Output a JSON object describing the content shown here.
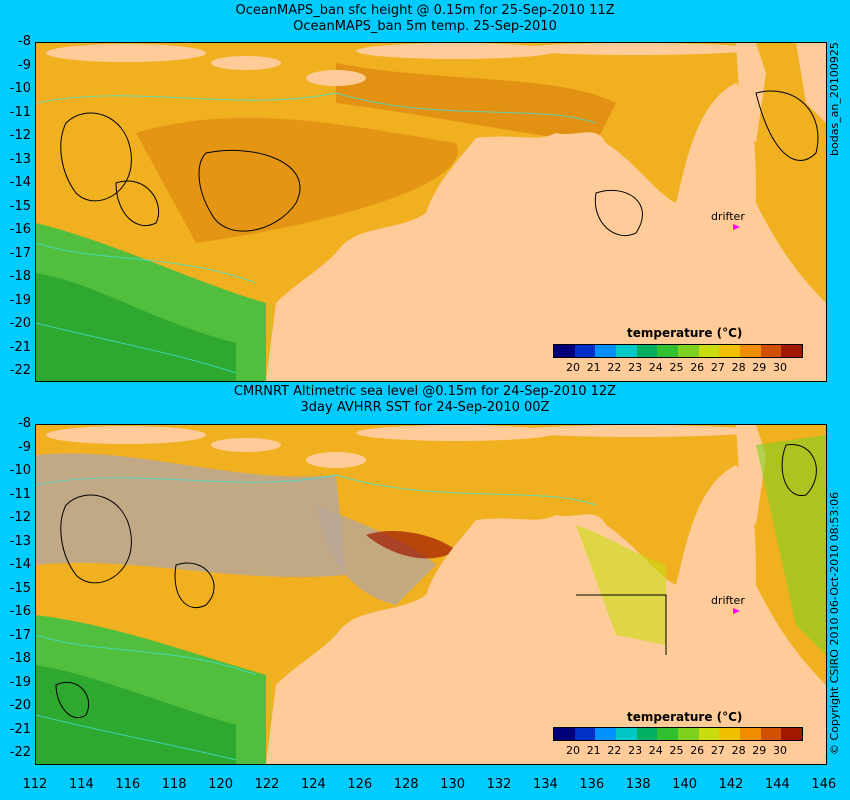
{
  "top_panel": {
    "title_line1": "OceanMAPS_ban sfc height @ 0.15m for 25-Sep-2010 11Z",
    "title_line2": "OceanMAPS_ban 5m temp. 25-Sep-2010",
    "side_label": "bodas_an_20100925",
    "drifter_label": "drifter",
    "colorbar_title": "temperature (°C)"
  },
  "bottom_panel": {
    "title_line1": "CMRNRT Altimetric sea level  @0.15m  for 24-Sep-2010 12Z",
    "title_line2": "3day AVHRR SST for 24-Sep-2010 00Z",
    "side_label": "© Copyright CSIRO 2010   06-Oct-2010 08:53:06",
    "drifter_label": "drifter",
    "colorbar_title": "temperature (°C)"
  },
  "colorbar": {
    "ticks": [
      "20",
      "21",
      "22",
      "23",
      "24",
      "25",
      "26",
      "27",
      "28",
      "29",
      "30"
    ],
    "colors": [
      "#00007a",
      "#0030c8",
      "#0090ff",
      "#00c8c8",
      "#00b060",
      "#30c030",
      "#80d020",
      "#c8dc10",
      "#f0c000",
      "#f08c00",
      "#d05000",
      "#a01800"
    ]
  },
  "map": {
    "lat_labels": [
      "-8",
      "-9",
      "-10",
      "-11",
      "-12",
      "-13",
      "-14",
      "-15",
      "-16",
      "-17",
      "-18",
      "-19",
      "-20",
      "-21",
      "-22"
    ],
    "lon_labels": [
      "112",
      "114",
      "116",
      "118",
      "120",
      "122",
      "124",
      "126",
      "128",
      "130",
      "132",
      "134",
      "136",
      "138",
      "140",
      "142",
      "144",
      "146"
    ],
    "colors": {
      "land": "#ffcc99",
      "ocean_warm": "#f0b020",
      "ocean_hot": "#e08a10",
      "ocean_cool": "#40c040",
      "no_data": "#b8a898",
      "background": "#00ccff"
    }
  }
}
